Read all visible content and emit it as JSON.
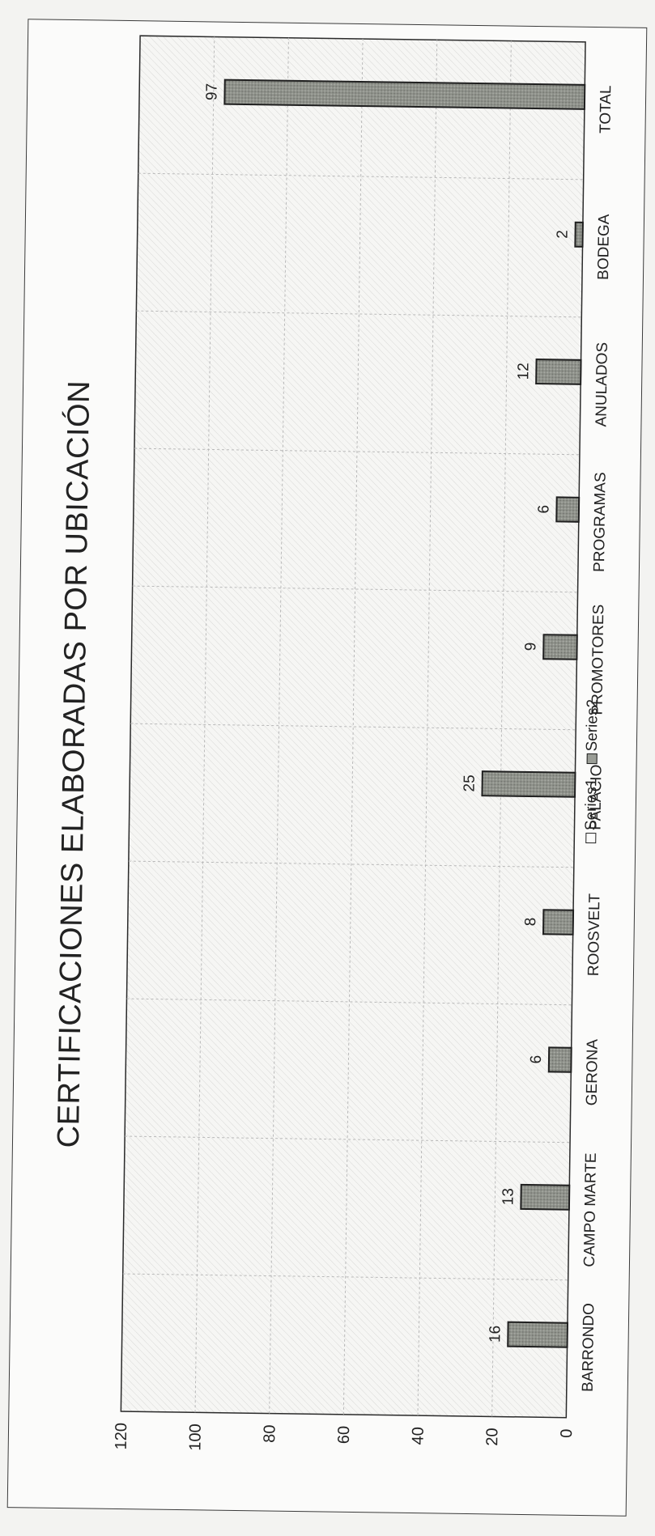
{
  "chart_data": {
    "type": "bar",
    "title": "CERTIFICACIONES ELABORADAS POR UBICACIÓN",
    "xlabel": "",
    "ylabel": "",
    "categories": [
      "BARRONDO",
      "CAMPO MARTE",
      "GERONA",
      "ROOSVELT",
      "PALACIO",
      "PROMOTORES",
      "PROGRAMAS",
      "ANULADOS",
      "BODEGA",
      "TOTAL"
    ],
    "series": [
      {
        "name": "Series1",
        "values": [
          0,
          0,
          0,
          0,
          0,
          0,
          0,
          0,
          0,
          0
        ]
      },
      {
        "name": "Series2",
        "values": [
          16,
          13,
          6,
          8,
          25,
          9,
          6,
          12,
          2,
          97
        ]
      }
    ],
    "data_labels": [
      "16",
      "13",
      "6",
      "8",
      "25",
      "9",
      "6",
      "12",
      "2",
      "97"
    ],
    "ylim": [
      0,
      120
    ],
    "yticks": [
      0,
      20,
      40,
      60,
      80,
      100,
      120
    ],
    "grid": true,
    "legend_placement": "bottom",
    "colors": {
      "bar": "#8f928b",
      "bar_edge": "#1f1f1f",
      "grid": "#b9b9b9"
    }
  }
}
